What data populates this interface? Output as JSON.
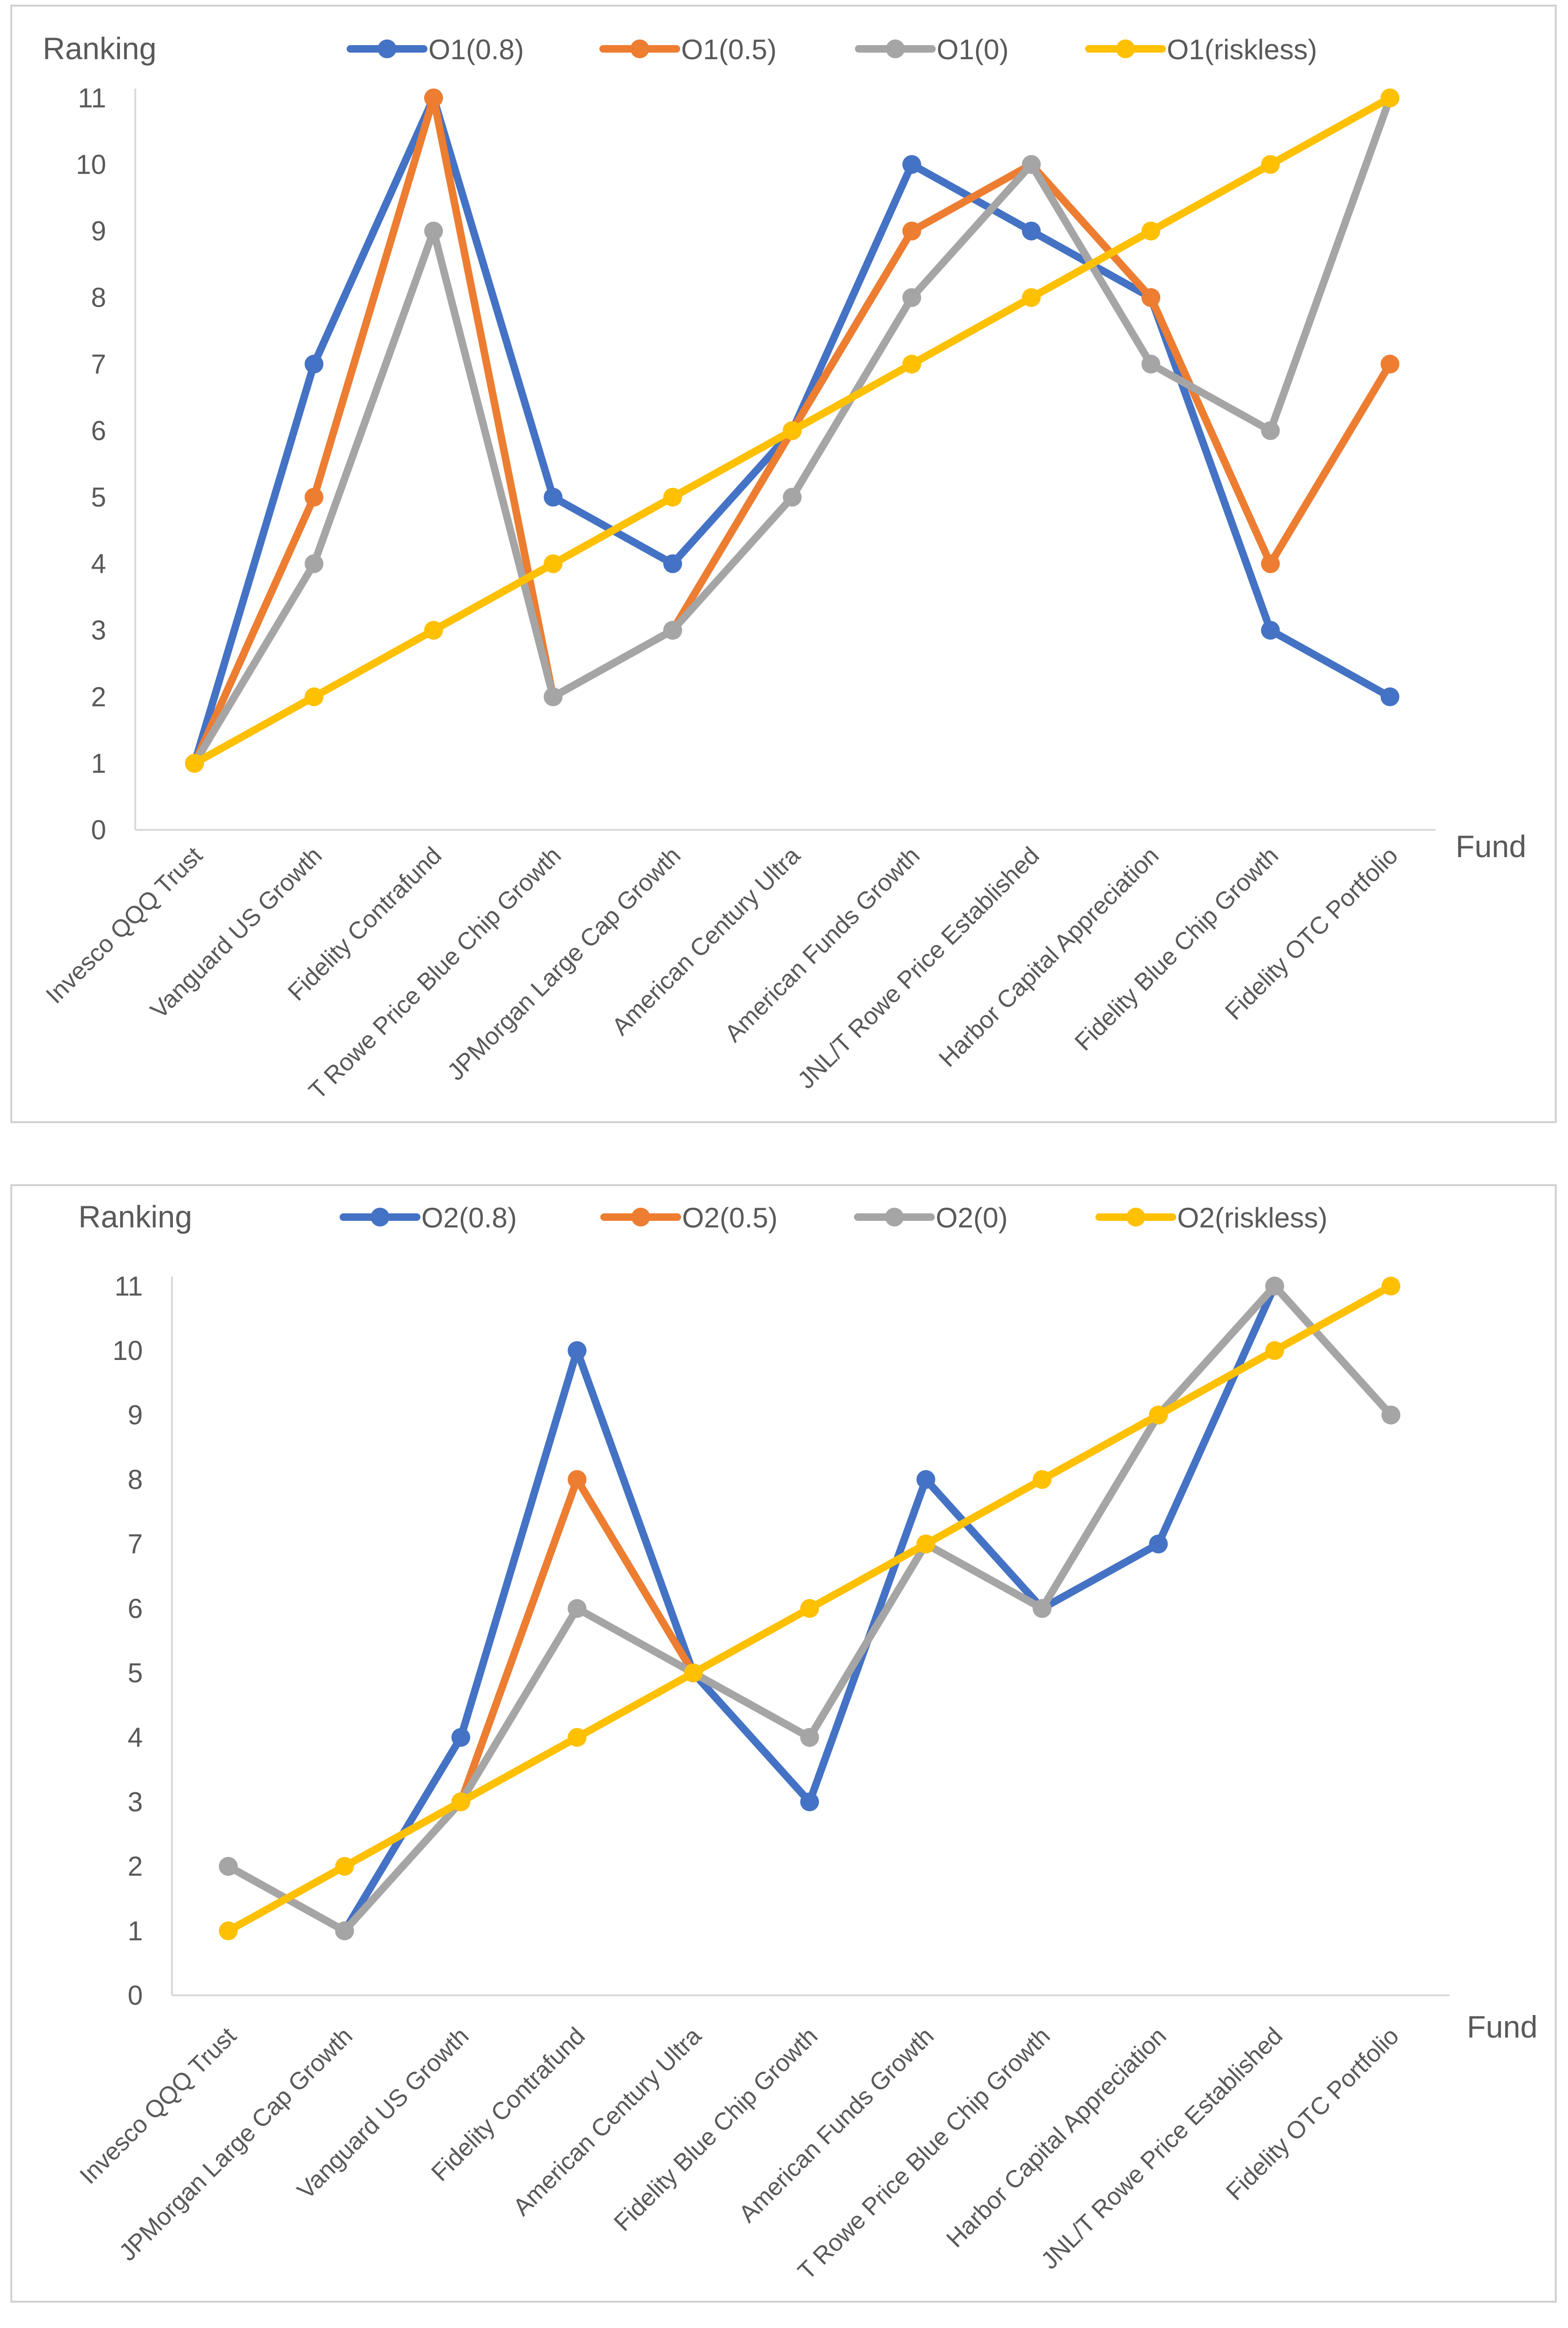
{
  "chart_data": [
    {
      "type": "line",
      "ylabel": "Ranking",
      "xlabel": "Fund",
      "ylim": [
        0,
        11
      ],
      "yticks": [
        0,
        1,
        2,
        3,
        4,
        5,
        6,
        7,
        8,
        9,
        10,
        11
      ],
      "grid": false,
      "legend": "top",
      "categories": [
        "Invesco QQQ Trust",
        "Vanguard US Growth",
        "Fidelity Contrafund",
        "T Rowe Price Blue Chip Growth",
        "JPMorgan Large Cap Growth",
        "American Century Ultra",
        "American Funds Growth",
        "JNL/T Rowe Price Established",
        "Harbor Capital Appreciation",
        "Fidelity Blue Chip Growth",
        "Fidelity OTC Portfolio"
      ],
      "series": [
        {
          "name": "O1(0.8)",
          "color": "#4472C4",
          "values": [
            1,
            7,
            11,
            5,
            4,
            6,
            10,
            9,
            8,
            3,
            2
          ]
        },
        {
          "name": "O1(0.5)",
          "color": "#ED7D31",
          "values": [
            1,
            5,
            11,
            2,
            3,
            6,
            9,
            10,
            8,
            4,
            7
          ]
        },
        {
          "name": "O1(0)",
          "color": "#A5A5A5",
          "values": [
            1,
            4,
            9,
            2,
            3,
            5,
            8,
            10,
            7,
            6,
            11
          ]
        },
        {
          "name": "O1(riskless)",
          "color": "#FFC000",
          "values": [
            1,
            2,
            3,
            4,
            5,
            6,
            7,
            8,
            9,
            10,
            11
          ]
        }
      ]
    },
    {
      "type": "line",
      "ylabel": "Ranking",
      "xlabel": "Fund",
      "ylim": [
        0,
        11
      ],
      "yticks": [
        0,
        1,
        2,
        3,
        4,
        5,
        6,
        7,
        8,
        9,
        10,
        11
      ],
      "grid": false,
      "legend": "top",
      "categories": [
        "Invesco QQQ Trust",
        "JPMorgan Large Cap Growth",
        "Vanguard US Growth",
        "Fidelity Contrafund",
        "American Century Ultra",
        "Fidelity Blue Chip Growth",
        "American Funds Growth",
        "T Rowe Price Blue Chip Growth",
        "Harbor Capital Appreciation",
        "JNL/T Rowe Price Established",
        "Fidelity OTC Portfolio"
      ],
      "series": [
        {
          "name": "O2(0.8)",
          "color": "#4472C4",
          "values": [
            2,
            1,
            4,
            10,
            5,
            3,
            8,
            6,
            7,
            11,
            9
          ]
        },
        {
          "name": "O2(0.5)",
          "color": "#ED7D31",
          "values": [
            2,
            1,
            3,
            8,
            5,
            4,
            7,
            6,
            9,
            11,
            9
          ]
        },
        {
          "name": "O2(0)",
          "color": "#A5A5A5",
          "values": [
            2,
            1,
            3,
            6,
            5,
            4,
            7,
            6,
            9,
            11,
            9
          ]
        },
        {
          "name": "O2(riskless)",
          "color": "#FFC000",
          "values": [
            1,
            2,
            3,
            4,
            5,
            6,
            7,
            8,
            9,
            10,
            11
          ]
        }
      ]
    }
  ]
}
